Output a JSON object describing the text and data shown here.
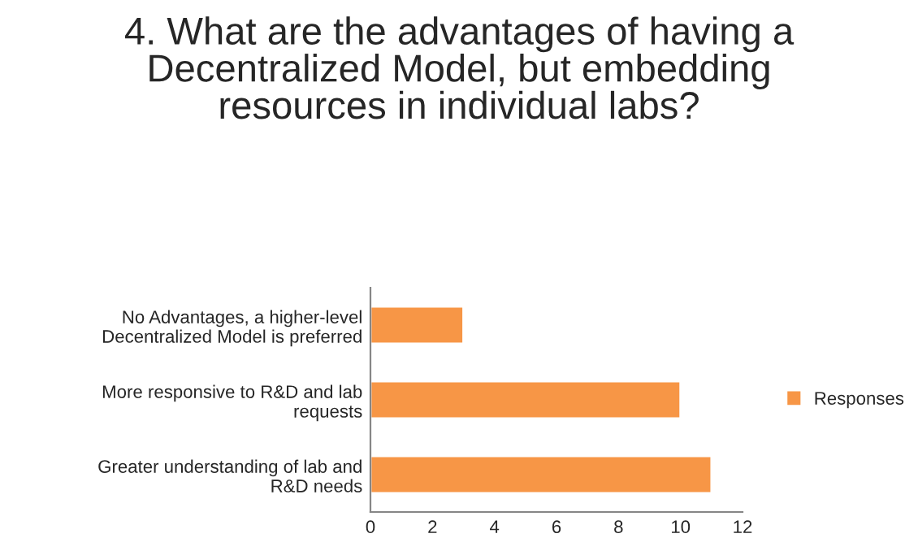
{
  "chart_data": {
    "type": "bar",
    "orientation": "horizontal",
    "title": "4. What are the advantages of having a Decentralized Model, but embedding resources in individual labs?",
    "categories": [
      "No Advantages, a higher-level Decentralized Model is preferred",
      "More responsive to R&D and lab requests",
      "Greater understanding of lab and R&D needs"
    ],
    "series": [
      {
        "name": "Responses",
        "color": "#f79646",
        "values": [
          3,
          10,
          11
        ]
      }
    ],
    "xlim": [
      0,
      12
    ],
    "xticks": [
      0,
      2,
      4,
      6,
      8,
      10,
      12
    ],
    "grid": false,
    "legend": "right"
  }
}
